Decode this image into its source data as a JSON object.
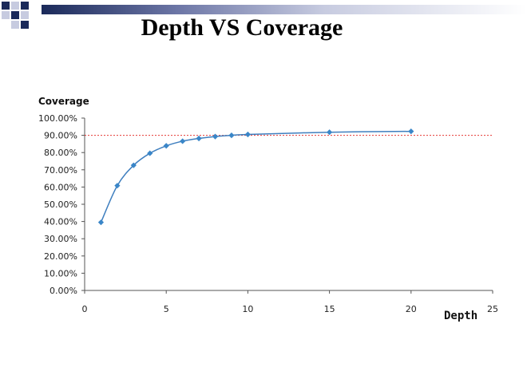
{
  "slide": {
    "title": "Depth VS Coverage"
  },
  "colors": {
    "band_dark": "#1b2a5a",
    "band_light": "#c7cbe0",
    "series": "#3f7fbf",
    "marker": "#3a86c8",
    "reference_line": "#e53935",
    "axis": "#555555"
  },
  "chart_data": {
    "type": "line",
    "title": "",
    "xlabel": "Depth",
    "ylabel": "Coverage",
    "xlim": [
      0,
      25
    ],
    "ylim": [
      0,
      100
    ],
    "x_ticks": [
      0,
      5,
      10,
      15,
      20,
      25
    ],
    "y_ticks": [
      0,
      10,
      20,
      30,
      40,
      50,
      60,
      70,
      80,
      90,
      100
    ],
    "y_tick_labels": [
      "0.00%",
      "10.00%",
      "20.00%",
      "30.00%",
      "40.00%",
      "50.00%",
      "60.00%",
      "70.00%",
      "80.00%",
      "90.00%",
      "100.00%"
    ],
    "grid": false,
    "smooth": true,
    "reference_line": {
      "orientation": "horizontal",
      "y": 90,
      "style": "dotted"
    },
    "series": [
      {
        "x": [
          1,
          2,
          3,
          4,
          5,
          6,
          7,
          8,
          9,
          10,
          15,
          20
        ],
        "y": [
          39.5,
          60.8,
          72.6,
          79.6,
          83.9,
          86.6,
          88.2,
          89.3,
          90.0,
          90.5,
          91.8,
          92.3
        ]
      }
    ]
  }
}
